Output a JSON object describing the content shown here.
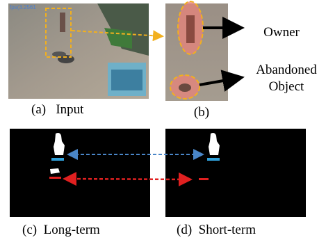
{
  "panels": {
    "a": {
      "caption": "(a)   Input",
      "overlay": "fps(3.2561"
    },
    "b": {
      "caption": "(b)",
      "labels": {
        "owner": "Owner",
        "abandoned_object": [
          "Abandoned",
          "Object"
        ]
      }
    },
    "c": {
      "caption": "(c)  Long-term"
    },
    "d": {
      "caption": "(d)  Short-term"
    }
  }
}
